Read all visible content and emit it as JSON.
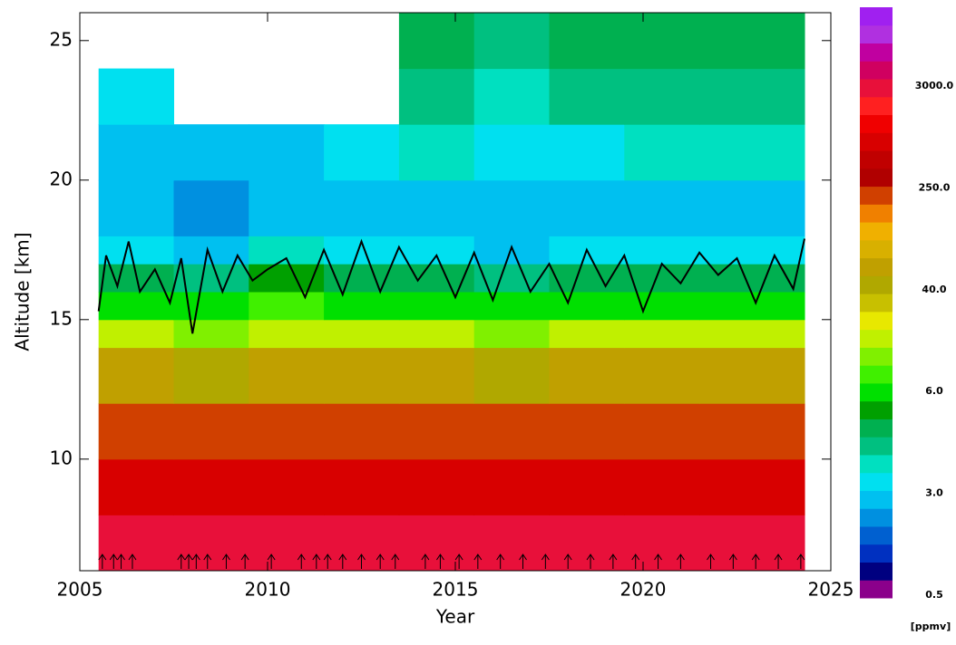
{
  "chart_data": {
    "type": "contour",
    "x_label": "Year",
    "y_label": "Altitude [km]",
    "xlim": [
      2005,
      2025
    ],
    "xticks": [
      2005,
      2010,
      2015,
      2020,
      2025
    ],
    "ylim": [
      6,
      26
    ],
    "yticks": [
      10,
      15,
      20,
      25
    ],
    "x_bins": [
      2005.5,
      2007.5,
      2009.5,
      2011.5,
      2013.5,
      2015.5,
      2017.5,
      2019.5,
      2021.5,
      2024.3
    ],
    "y_bins": [
      6,
      8,
      10,
      12,
      14,
      15,
      16,
      17,
      18,
      20,
      22,
      24,
      26
    ],
    "values": [
      [
        3000,
        2500,
        3500,
        2800,
        3000,
        2600,
        3200,
        2900,
        3000
      ],
      [
        800,
        700,
        900,
        750,
        850,
        700,
        800,
        750,
        800
      ],
      [
        250,
        200,
        260,
        230,
        240,
        210,
        250,
        220,
        240
      ],
      [
        60,
        50,
        70,
        55,
        65,
        50,
        60,
        55,
        60
      ],
      [
        15,
        12,
        18,
        14,
        16,
        13,
        15,
        14,
        15
      ],
      [
        7,
        6,
        8,
        7,
        7,
        6,
        7,
        6,
        7
      ],
      [
        4.5,
        4,
        5,
        4.5,
        4.5,
        4,
        4.5,
        4.5,
        4.5
      ],
      [
        3.2,
        3,
        3.5,
        3.3,
        3.2,
        3,
        3.3,
        3.2,
        3.3
      ],
      [
        2.5,
        2.2,
        2.6,
        2.8,
        3,
        2.6,
        2.8,
        3,
        2.8
      ],
      [
        3,
        2.8,
        2.9,
        3.2,
        3.5,
        3.2,
        3.4,
        3.6,
        3.5
      ],
      [
        3.4,
        null,
        null,
        null,
        4,
        3.8,
        4,
        4.2,
        4.2
      ],
      [
        null,
        null,
        null,
        null,
        4.5,
        4.2,
        4.5,
        4.8,
        4.8
      ]
    ],
    "line": {
      "color": "#000000",
      "x": [
        2005.5,
        2005.7,
        2006,
        2006.3,
        2006.6,
        2007,
        2007.4,
        2007.7,
        2008,
        2008.4,
        2008.8,
        2009.2,
        2009.6,
        2010,
        2010.5,
        2011,
        2011.5,
        2012,
        2012.5,
        2013,
        2013.5,
        2014,
        2014.5,
        2015,
        2015.5,
        2016,
        2016.5,
        2017,
        2017.5,
        2018,
        2018.5,
        2019,
        2019.5,
        2020,
        2020.5,
        2021,
        2021.5,
        2022,
        2022.5,
        2023,
        2023.5,
        2024,
        2024.3
      ],
      "y": [
        15.3,
        17.3,
        16.2,
        17.8,
        16,
        16.8,
        15.6,
        17.2,
        14.5,
        17.5,
        16,
        17.3,
        16.4,
        16.8,
        17.2,
        15.8,
        17.5,
        15.9,
        17.8,
        16,
        17.6,
        16.4,
        17.3,
        15.8,
        17.4,
        15.7,
        17.6,
        16,
        17,
        15.6,
        17.5,
        16.2,
        17.3,
        15.3,
        17,
        16.3,
        17.4,
        16.6,
        17.2,
        15.6,
        17.3,
        16.1,
        17.9
      ]
    },
    "launches": [
      2005.6,
      2005.9,
      2006.1,
      2006.4,
      2007.7,
      2007.9,
      2008.1,
      2008.4,
      2008.9,
      2009.4,
      2010.1,
      2010.9,
      2011.3,
      2011.6,
      2012.0,
      2012.5,
      2013.0,
      2013.4,
      2014.2,
      2014.6,
      2015.1,
      2015.6,
      2016.2,
      2016.8,
      2017.4,
      2018.0,
      2018.6,
      2019.2,
      2019.8,
      2020.4,
      2021.0,
      2021.8,
      2022.4,
      2023.0,
      2023.6,
      2024.2
    ],
    "colorbar": {
      "unit": "[ppmv]",
      "ticks": [
        {
          "value": 0.5,
          "label": "0.5"
        },
        {
          "value": 3,
          "label": "3.0"
        },
        {
          "value": 6,
          "label": "6.0"
        },
        {
          "value": 40,
          "label": "40.0"
        },
        {
          "value": 250,
          "label": "250.0"
        },
        {
          "value": 3000,
          "label": "3000.0"
        }
      ],
      "colors": [
        "#8b008b",
        "#000080",
        "#0030c0",
        "#0060d0",
        "#0090e0",
        "#00c0f0",
        "#00e0f0",
        "#00e0c0",
        "#00c080",
        "#00b050",
        "#00a000",
        "#00e000",
        "#40f000",
        "#80f000",
        "#c0f000",
        "#e8e800",
        "#c8c000",
        "#b0a800",
        "#c0a000",
        "#d8b000",
        "#f0b000",
        "#f08000",
        "#d04000",
        "#b00000",
        "#c00000",
        "#d80000",
        "#f00000",
        "#ff2020",
        "#e8103a",
        "#d00060",
        "#c000a0",
        "#b030e0",
        "#a020f0"
      ]
    }
  }
}
